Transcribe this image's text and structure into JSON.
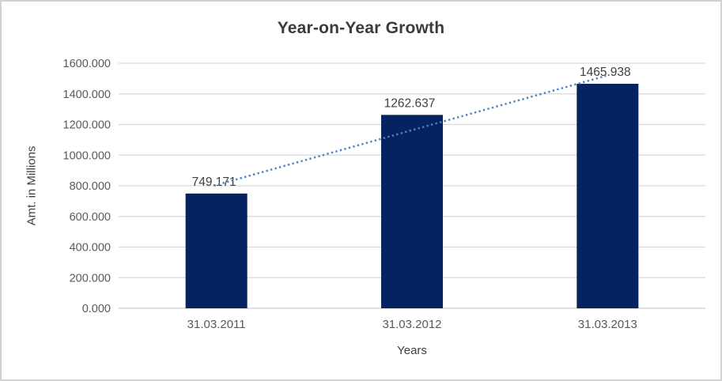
{
  "window": {
    "background": "#ffffff",
    "border_color": "#d2d2d2"
  },
  "chart_data": {
    "type": "bar",
    "title": "Year-on-Year Growth",
    "xlabel": "Years",
    "ylabel": "Amt. in Millions",
    "categories": [
      "31.03.2011",
      "31.03.2012",
      "31.03.2013"
    ],
    "values": [
      749.171,
      1262.637,
      1465.938
    ],
    "data_labels": [
      "749.171",
      "1262.637",
      "1465.938"
    ],
    "ylim": [
      0,
      1600
    ],
    "ytick_step": 200,
    "ytick_labels": [
      "0.000",
      "200.000",
      "400.000",
      "600.000",
      "800.000",
      "1000.000",
      "1200.000",
      "1400.000",
      "1600.000"
    ],
    "grid": "horizontal-on",
    "legend": "none",
    "colors": {
      "bar": "#052360",
      "trendline": "#4d82c4",
      "gridline": "#d9d9d9",
      "axis_line": "#c9c9c9",
      "tick_text": "#595959",
      "category_text": "#595959",
      "data_label_text": "#404040"
    },
    "trendline": {
      "type": "linear",
      "style": "dotted"
    }
  }
}
